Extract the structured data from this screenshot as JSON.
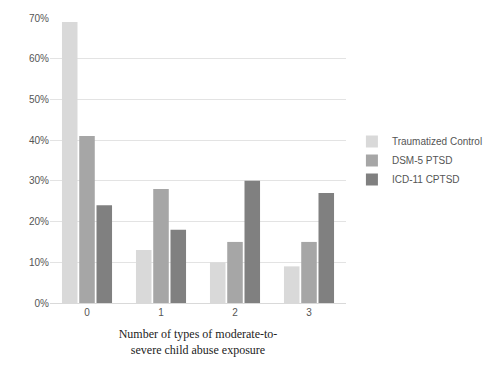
{
  "chart_data": {
    "type": "bar",
    "x_label": "Number of types of moderate-to-\nsevere child abuse exposure",
    "categories": [
      "0",
      "1",
      "2",
      "3"
    ],
    "series": [
      {
        "name": "Traumatized Control",
        "color": "#d9d9d9",
        "values": [
          69,
          13,
          10,
          9
        ]
      },
      {
        "name": "DSM-5 PTSD",
        "color": "#a6a6a6",
        "values": [
          41,
          28,
          15,
          15
        ]
      },
      {
        "name": "ICD-11 CPTSD",
        "color": "#808080",
        "values": [
          24,
          18,
          30,
          27
        ]
      }
    ],
    "ylim": [
      0,
      70
    ],
    "yticks": [
      {
        "value": 0,
        "label": "0%"
      },
      {
        "value": 10,
        "label": "10%"
      },
      {
        "value": 20,
        "label": "20%"
      },
      {
        "value": 30,
        "label": "30%"
      },
      {
        "value": 40,
        "label": "40%"
      },
      {
        "value": 50,
        "label": "50%"
      },
      {
        "value": 60,
        "label": "60%"
      },
      {
        "value": 70,
        "label": "70%"
      }
    ],
    "grid": true,
    "legend": "right"
  }
}
